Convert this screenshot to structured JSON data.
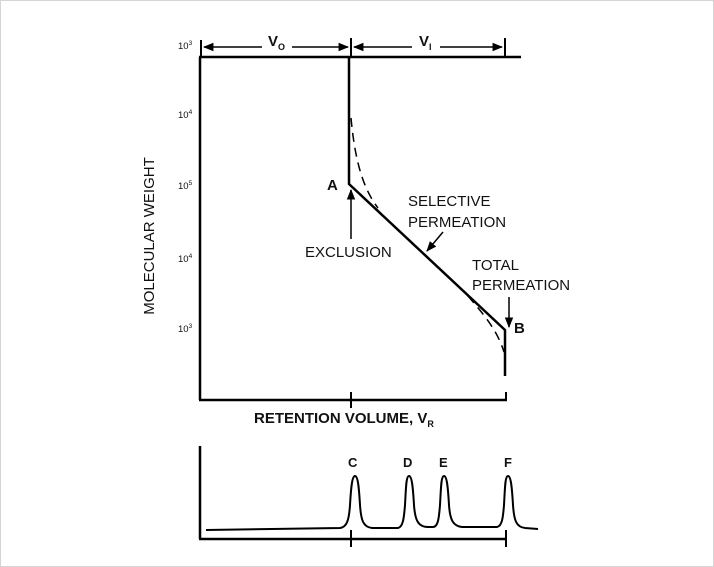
{
  "y_axis": {
    "label": "MOLECULAR WEIGHT",
    "ticks": [
      {
        "base": "10",
        "exp": "3"
      },
      {
        "base": "10",
        "exp": "4"
      },
      {
        "base": "10",
        "exp": "5"
      },
      {
        "base": "10",
        "exp": "4"
      },
      {
        "base": "10",
        "exp": "3"
      }
    ]
  },
  "x_axis": {
    "label": "RETENTION VOLUME, V",
    "label_sub": "R"
  },
  "volumes": {
    "vo": {
      "main": "V",
      "sub": "O"
    },
    "vi": {
      "main": "V",
      "sub": "I"
    }
  },
  "points": {
    "a": "A",
    "b": "B"
  },
  "annotations": {
    "exclusion": "EXCLUSION",
    "selective": [
      "SELECTIVE",
      "PERMEATION"
    ],
    "total": [
      "TOTAL",
      "PERMEATION"
    ]
  },
  "peaks": [
    "C",
    "D",
    "E",
    "F"
  ],
  "colors": {
    "line": "#000000",
    "text": "#111111",
    "border": "#d4d4d4"
  }
}
